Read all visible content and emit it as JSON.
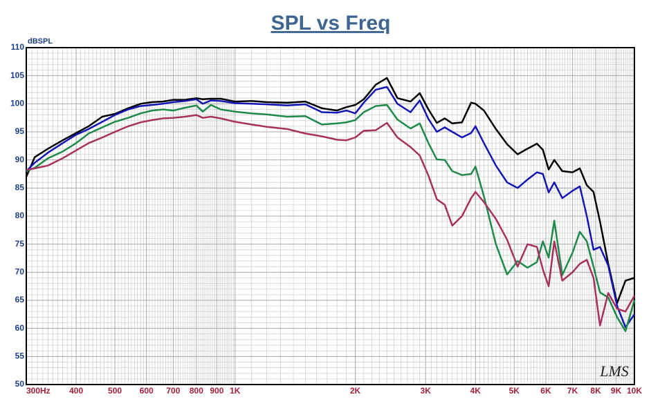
{
  "chart_data": {
    "type": "line",
    "title": "SPL vs Freq",
    "y_label": "dBSPL",
    "x_label": "Hz",
    "watermark": "LMS",
    "log_x": true,
    "grid": true,
    "minor_grid": true,
    "xlim": [
      300,
      10000
    ],
    "ylim": [
      50,
      110
    ],
    "xticks": [
      300,
      400,
      500,
      600,
      700,
      800,
      900,
      {
        "value": 1000,
        "label": "1K"
      },
      {
        "value": 2000,
        "label": "2K"
      },
      {
        "value": 3000,
        "label": "3K"
      },
      {
        "value": 4000,
        "label": "4K"
      },
      {
        "value": 5000,
        "label": "5K"
      },
      {
        "value": 6000,
        "label": "6K"
      },
      {
        "value": 7000,
        "label": "7K"
      },
      {
        "value": 8000,
        "label": "8K"
      },
      {
        "value": 9000,
        "label": "9K"
      },
      {
        "value": 10000,
        "label": "10K"
      }
    ],
    "yticks": [
      50,
      55,
      60,
      65,
      70,
      75,
      80,
      85,
      90,
      95,
      100,
      105,
      110
    ],
    "x": [
      300,
      315,
      340,
      370,
      400,
      430,
      465,
      500,
      540,
      580,
      620,
      660,
      700,
      750,
      800,
      830,
      870,
      920,
      1000,
      1100,
      1200,
      1350,
      1500,
      1650,
      1800,
      1900,
      2000,
      2100,
      2250,
      2400,
      2550,
      2750,
      2900,
      3050,
      3200,
      3350,
      3500,
      3700,
      3900,
      4000,
      4200,
      4500,
      4800,
      5100,
      5400,
      5700,
      5900,
      6100,
      6300,
      6600,
      7000,
      7300,
      7600,
      7900,
      8200,
      8600,
      9050,
      9500,
      10000
    ],
    "series": [
      {
        "color": "#000000",
        "values": [
          87,
          90.5,
          92,
          93.5,
          94.8,
          96,
          97.7,
          98.2,
          99.2,
          100,
          100.3,
          100.4,
          100.7,
          100.7,
          101,
          100.8,
          100.9,
          100.9,
          100.4,
          100.5,
          100.3,
          100.2,
          100.4,
          99.2,
          98.8,
          99.4,
          99.8,
          100.8,
          103.4,
          104.6,
          101,
          100.4,
          101.9,
          99,
          96.6,
          97.4,
          96.5,
          96.7,
          100.2,
          100,
          98.8,
          95.5,
          92.8,
          91,
          92,
          92.9,
          91.8,
          88.3,
          90,
          88,
          87.8,
          88.5,
          85.5,
          84.3,
          79,
          71.5,
          64.5,
          68.5,
          69
        ]
      },
      {
        "color": "#1414b4",
        "values": [
          88,
          89.5,
          91.3,
          93,
          94.5,
          95.5,
          96.8,
          98,
          99,
          99.6,
          99.8,
          100,
          100.3,
          100.5,
          100.8,
          100,
          100.6,
          100.5,
          100.1,
          100,
          99.9,
          99.7,
          99.9,
          98.5,
          98.4,
          98.8,
          98.3,
          100.2,
          102.5,
          103,
          100,
          98.5,
          100.6,
          97.3,
          95,
          95.8,
          95,
          94,
          94.8,
          96,
          93,
          89,
          86,
          85,
          86.5,
          87.8,
          87.5,
          84.2,
          86,
          83.2,
          84.5,
          85.3,
          80,
          74,
          74.5,
          71.2,
          64,
          60.2,
          62.5
        ]
      },
      {
        "color": "#1e8a4a",
        "values": [
          88,
          88.6,
          90.3,
          91.5,
          93,
          94.7,
          95.8,
          96.8,
          97.5,
          98.3,
          98.8,
          99,
          98.8,
          99.3,
          99.7,
          98.6,
          99.8,
          99,
          98.6,
          98.3,
          98.1,
          97.7,
          97.8,
          96.3,
          96.5,
          96.7,
          97.1,
          98.5,
          99.6,
          99.8,
          97.2,
          95.6,
          96.5,
          93,
          90.1,
          90,
          88,
          87.3,
          87.5,
          88.8,
          83.5,
          75,
          69.6,
          72,
          70.8,
          71.8,
          75.5,
          72.6,
          79.2,
          69.5,
          73.5,
          77.2,
          75.5,
          71,
          66.4,
          65.5,
          62,
          59.5,
          65
        ]
      },
      {
        "color": "#a8305e",
        "values": [
          88.2,
          88.5,
          89,
          90.3,
          91.7,
          93,
          94,
          95,
          96,
          96.7,
          97.1,
          97.4,
          97.5,
          97.7,
          98,
          97.5,
          97.7,
          97.4,
          96.8,
          96.3,
          95.9,
          95.5,
          94.7,
          94.2,
          93.6,
          93.5,
          94,
          95.2,
          95.3,
          96.6,
          94,
          92.3,
          90.8,
          87.2,
          83,
          82,
          78.3,
          80,
          83.2,
          84.3,
          82.5,
          79.5,
          75.8,
          71,
          75,
          74.5,
          70.5,
          67.5,
          75.5,
          68.5,
          70,
          71.5,
          72.2,
          69,
          60.5,
          66.3,
          63.5,
          63,
          65.8
        ]
      }
    ]
  }
}
